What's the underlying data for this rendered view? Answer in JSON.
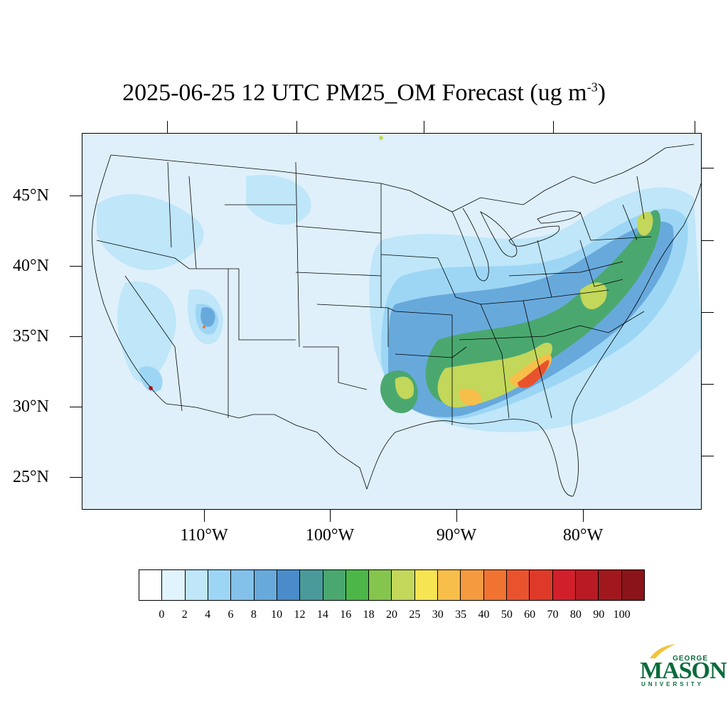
{
  "title": {
    "main": "2025-06-25 12 UTC PM25_OM Forecast (ug m",
    "superscript": "-3",
    "close": ")"
  },
  "map": {
    "latitude_labels": [
      "45°N",
      "40°N",
      "35°N",
      "30°N",
      "25°N"
    ],
    "longitude_labels": [
      "110°W",
      "100°W",
      "90°W",
      "80°W"
    ],
    "background_color": "#dff0fb"
  },
  "colorbar": {
    "labels": [
      "0",
      "2",
      "4",
      "6",
      "8",
      "10",
      "12",
      "14",
      "16",
      "18",
      "20",
      "25",
      "30",
      "35",
      "40",
      "50",
      "60",
      "70",
      "80",
      "90",
      "100"
    ],
    "colors": [
      "#ffffff",
      "#e1f3fc",
      "#bfe6f9",
      "#9dd6f5",
      "#83c1ea",
      "#68a9dc",
      "#4a8cc9",
      "#4a9a9a",
      "#4aa86f",
      "#4cb748",
      "#85c54d",
      "#c3d75a",
      "#f6e453",
      "#f7be4a",
      "#f59a3e",
      "#f07331",
      "#e8532e",
      "#de3a2a",
      "#d21f2c",
      "#b81b24",
      "#a0181e",
      "#8a1419"
    ]
  },
  "logo": {
    "line1": "GEORGE",
    "line2": "MASON",
    "line3": "UNIVERSITY",
    "color": "#0a6b3b",
    "accent": "#f2c33c"
  }
}
